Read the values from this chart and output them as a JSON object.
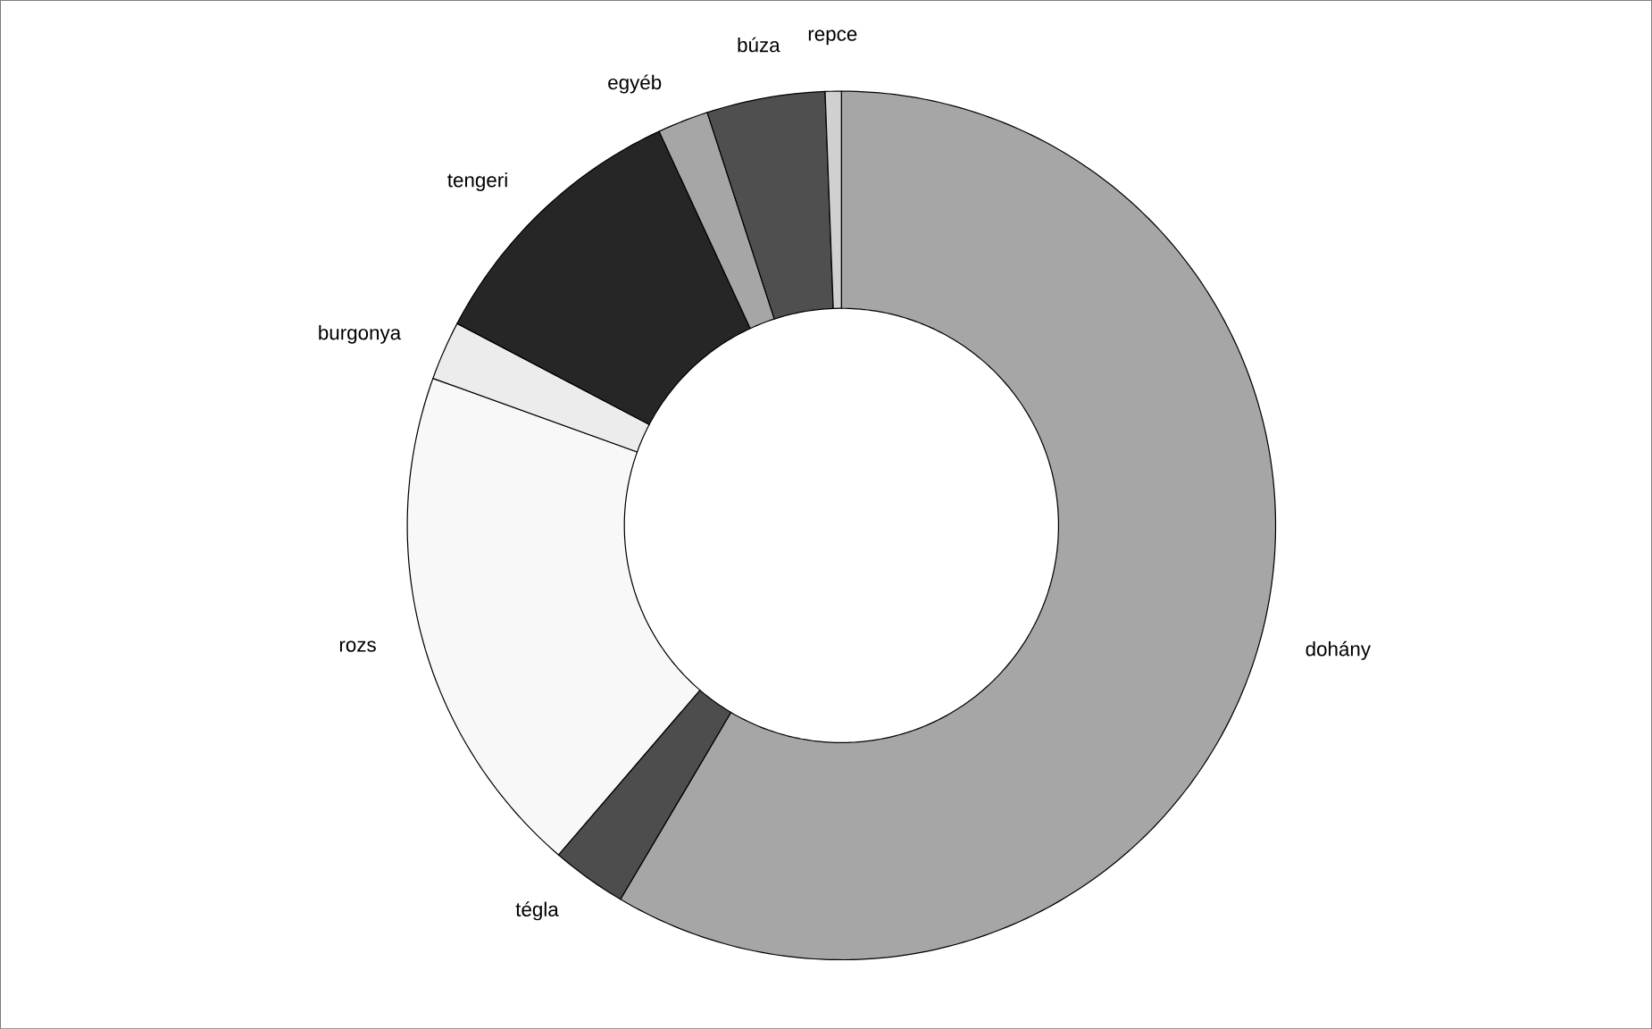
{
  "chart_data": {
    "type": "donut",
    "categories": [
      "dohány",
      "tégla",
      "rozs",
      "burgonya",
      "tengeri",
      "egyéb",
      "búza",
      "repce"
    ],
    "values": [
      58.5,
      2.8,
      19.2,
      2.2,
      10.4,
      1.9,
      4.4,
      0.6
    ],
    "colors": [
      "#a6a6a6",
      "#4d4d4d",
      "#f8f8f8",
      "#ececec",
      "#262626",
      "#a6a6a6",
      "#4f4f4f",
      "#d0d0d0"
    ]
  }
}
